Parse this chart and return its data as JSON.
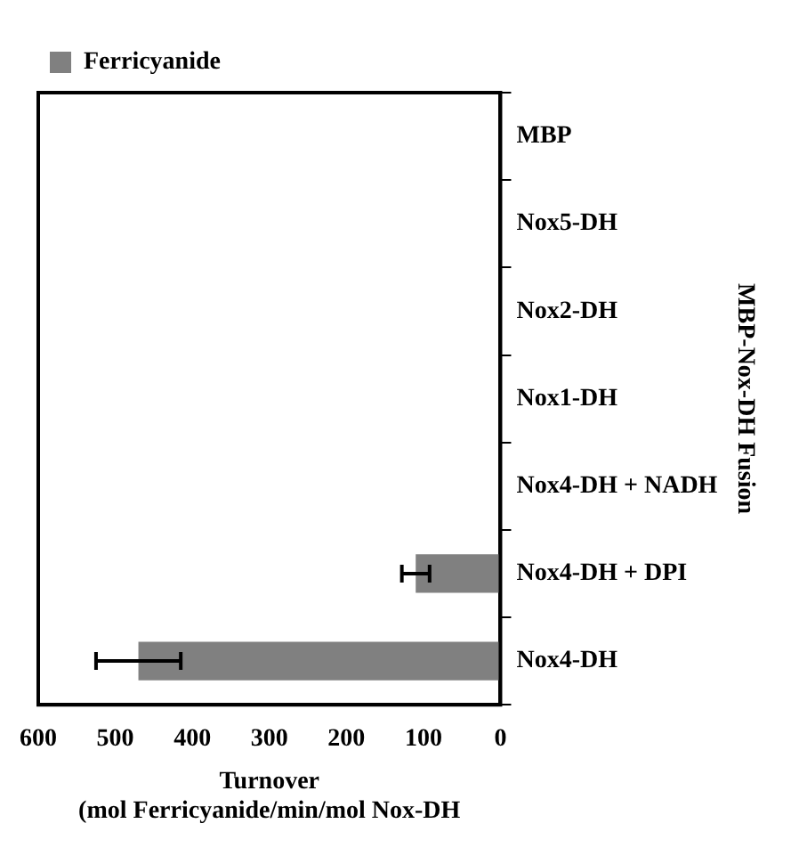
{
  "chart_data": {
    "type": "bar",
    "orientation": "horizontal",
    "xlabel": "Turnover\n(mol Ferricyanide/min/mol Nox-DH",
    "ylabel": "MBP-Nox-DH Fusion",
    "categories": [
      "MBP",
      "Nox5-DH",
      "Nox2-DH",
      "Nox1-DH",
      "Nox4-DH + NADH",
      "Nox4-DH + DPI",
      "Nox4-DH"
    ],
    "series": [
      {
        "name": "Ferricyanide",
        "color": "#808080",
        "values": [
          null,
          null,
          null,
          null,
          null,
          110,
          470
        ],
        "errors": [
          null,
          null,
          null,
          null,
          null,
          18,
          55
        ]
      }
    ],
    "xlim": [
      600,
      0
    ],
    "xticks": [
      600,
      500,
      400,
      300,
      200,
      100,
      0
    ],
    "grid": false,
    "legend": "top left"
  }
}
